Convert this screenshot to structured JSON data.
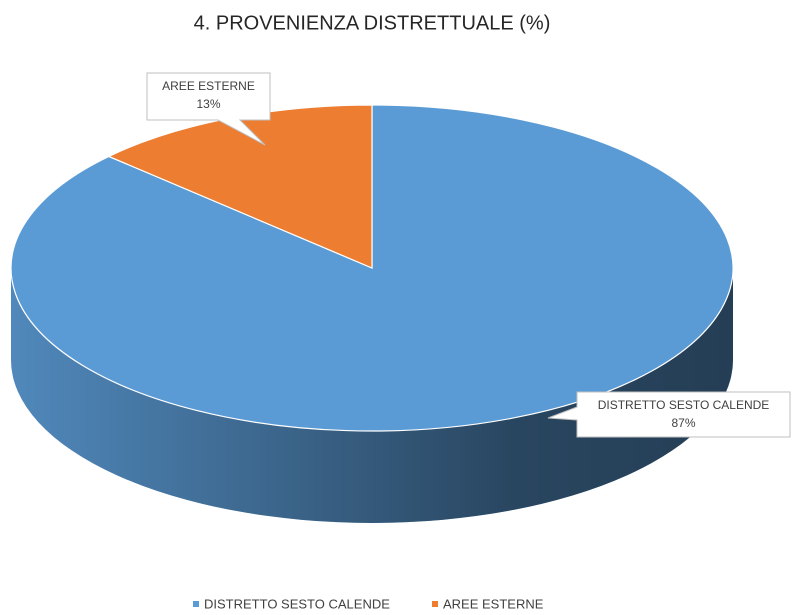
{
  "chart_data": {
    "type": "pie",
    "title": "4. PROVENIENZA DISTRETTUALE (%)",
    "categories": [
      "DISTRETTO SESTO CALENDE",
      "AREE ESTERNE"
    ],
    "values": [
      87,
      13
    ],
    "value_labels": [
      "87%",
      "13%"
    ],
    "colors": [
      "#5b9bd5",
      "#ed7d31"
    ],
    "legend": "bottom"
  }
}
